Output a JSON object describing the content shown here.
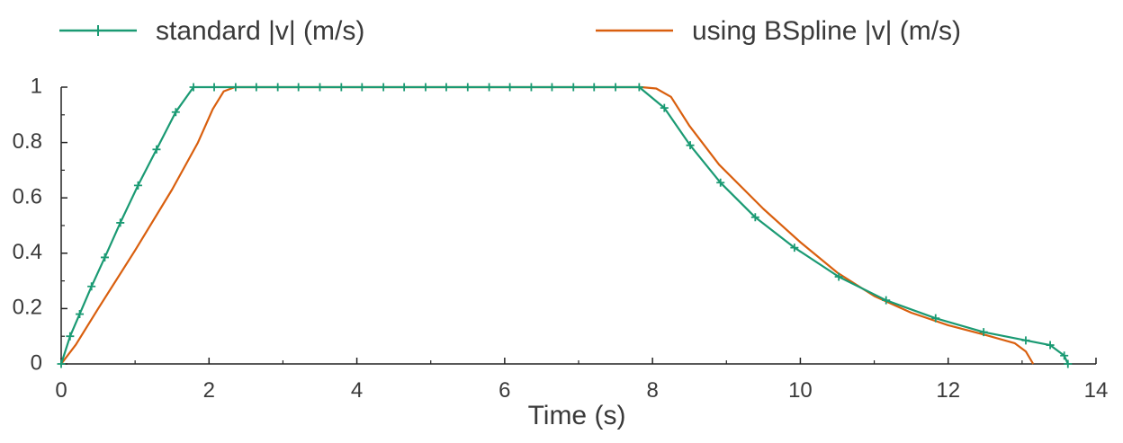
{
  "chart_data": {
    "type": "line",
    "title": "",
    "xlabel": "Time (s)",
    "ylabel": "",
    "xlim": [
      0,
      14
    ],
    "ylim": [
      0,
      1
    ],
    "x_ticks": [
      0,
      2,
      4,
      6,
      8,
      10,
      12,
      14
    ],
    "x_tick_labels": [
      "0",
      "2",
      "4",
      "6",
      "8",
      "10",
      "12",
      "14"
    ],
    "y_ticks": [
      0,
      0.2,
      0.4,
      0.6,
      0.8,
      1
    ],
    "y_tick_labels": [
      "0",
      "0.2",
      "0.4",
      "0.6",
      "0.8",
      "1"
    ],
    "grid": false,
    "legend_position": "top",
    "series": [
      {
        "name": "standard |v| (m/s)",
        "color": "#1a9a73",
        "marker": "plus",
        "points": [
          [
            0.0,
            0.0
          ],
          [
            0.12,
            0.1
          ],
          [
            0.25,
            0.18
          ],
          [
            0.41,
            0.28
          ],
          [
            0.59,
            0.385
          ],
          [
            0.8,
            0.51
          ],
          [
            1.04,
            0.645
          ],
          [
            1.29,
            0.775
          ],
          [
            1.55,
            0.91
          ],
          [
            1.79,
            1.0
          ],
          [
            2.07,
            1.0
          ],
          [
            2.36,
            1.0
          ],
          [
            2.64,
            1.0
          ],
          [
            2.93,
            1.0
          ],
          [
            3.21,
            1.0
          ],
          [
            3.5,
            1.0
          ],
          [
            3.79,
            1.0
          ],
          [
            4.07,
            1.0
          ],
          [
            4.36,
            1.0
          ],
          [
            4.64,
            1.0
          ],
          [
            4.93,
            1.0
          ],
          [
            5.21,
            1.0
          ],
          [
            5.5,
            1.0
          ],
          [
            5.79,
            1.0
          ],
          [
            6.07,
            1.0
          ],
          [
            6.36,
            1.0
          ],
          [
            6.64,
            1.0
          ],
          [
            6.93,
            1.0
          ],
          [
            7.21,
            1.0
          ],
          [
            7.5,
            1.0
          ],
          [
            7.82,
            1.0
          ],
          [
            8.16,
            0.925
          ],
          [
            8.51,
            0.79
          ],
          [
            8.92,
            0.655
          ],
          [
            9.39,
            0.53
          ],
          [
            9.92,
            0.42
          ],
          [
            10.52,
            0.315
          ],
          [
            11.16,
            0.23
          ],
          [
            11.83,
            0.165
          ],
          [
            12.48,
            0.115
          ],
          [
            13.05,
            0.085
          ],
          [
            13.38,
            0.068
          ],
          [
            13.57,
            0.03
          ],
          [
            13.62,
            0.0
          ]
        ]
      },
      {
        "name": "using BSpline |v| (m/s)",
        "color": "#d95f0e",
        "marker": "none",
        "points": [
          [
            0.0,
            0.0
          ],
          [
            0.2,
            0.07
          ],
          [
            0.5,
            0.2
          ],
          [
            1.0,
            0.41
          ],
          [
            1.5,
            0.63
          ],
          [
            1.85,
            0.8
          ],
          [
            2.05,
            0.92
          ],
          [
            2.2,
            0.985
          ],
          [
            2.35,
            1.0
          ],
          [
            7.85,
            1.0
          ],
          [
            8.05,
            0.995
          ],
          [
            8.25,
            0.965
          ],
          [
            8.5,
            0.86
          ],
          [
            8.9,
            0.72
          ],
          [
            9.5,
            0.56
          ],
          [
            10.0,
            0.44
          ],
          [
            10.5,
            0.33
          ],
          [
            11.0,
            0.245
          ],
          [
            11.5,
            0.185
          ],
          [
            12.0,
            0.14
          ],
          [
            12.5,
            0.105
          ],
          [
            12.9,
            0.075
          ],
          [
            13.05,
            0.045
          ],
          [
            13.15,
            0.0
          ]
        ]
      }
    ]
  }
}
